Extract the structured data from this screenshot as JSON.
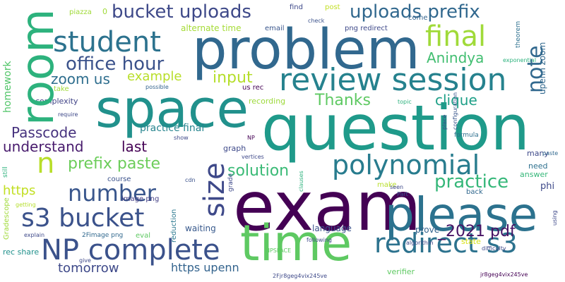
{
  "words": [
    {
      "text": "question",
      "color": "#1f9a8a"
    },
    {
      "text": "exam",
      "color": "#440154"
    },
    {
      "text": "problem",
      "color": "#31688e"
    },
    {
      "text": "space",
      "color": "#21918c"
    },
    {
      "text": "time",
      "color": "#5ec962"
    },
    {
      "text": "please",
      "color": "#2c728e"
    },
    {
      "text": "room",
      "color": "#2db27d"
    },
    {
      "text": "review session",
      "color": "#26828e"
    },
    {
      "text": "NP complete",
      "color": "#3b528b"
    },
    {
      "text": "redirect s3",
      "color": "#2c728e"
    },
    {
      "text": "s3 bucket",
      "color": "#3b528b"
    },
    {
      "text": "student",
      "color": "#2c728e"
    },
    {
      "text": "polynomial",
      "color": "#287c8e"
    },
    {
      "text": "final",
      "color": "#a0da39"
    },
    {
      "text": "size",
      "color": "#3e4989"
    },
    {
      "text": "number",
      "color": "#39568c"
    },
    {
      "text": "bucket uploads",
      "color": "#3e4989"
    },
    {
      "text": "uploads prefix",
      "color": "#31688e"
    },
    {
      "text": "office hour",
      "color": "#3b528b"
    },
    {
      "text": "practice",
      "color": "#35b779"
    },
    {
      "text": "n",
      "color": "#b8de29"
    },
    {
      "text": "review",
      "color": "#26828e"
    },
    {
      "text": "note",
      "color": "#31688e"
    },
    {
      "text": "input",
      "color": "#b5de2b"
    },
    {
      "text": "prefix paste",
      "color": "#6ccd5a"
    },
    {
      "text": "solution",
      "color": "#3aba76"
    },
    {
      "text": "Thanks",
      "color": "#5ec962"
    },
    {
      "text": "Passcode",
      "color": "#46327e"
    },
    {
      "text": "_2021 pdf",
      "color": "#471365"
    },
    {
      "text": "zoom us",
      "color": "#2e6e8e"
    },
    {
      "text": "clique",
      "color": "#1fa088"
    },
    {
      "text": "Anindya",
      "color": "#42be71"
    },
    {
      "text": "understand",
      "color": "#481b6d"
    },
    {
      "text": "last",
      "color": "#440154"
    },
    {
      "text": "tomorrow",
      "color": "#3e4989"
    },
    {
      "text": "https",
      "color": "#c2df23"
    },
    {
      "text": "example",
      "color": "#b8de29"
    },
    {
      "text": "practice final",
      "color": "#25848e"
    },
    {
      "text": "https upenn",
      "color": "#33638d"
    },
    {
      "text": "homework",
      "color": "#52c569"
    },
    {
      "text": "complexity",
      "color": "#414487"
    },
    {
      "text": "alternate time",
      "color": "#a5db36"
    },
    {
      "text": "waiting",
      "color": "#38598c"
    },
    {
      "text": "language",
      "color": "#3b528b"
    },
    {
      "text": "prove",
      "color": "#33638d"
    },
    {
      "text": "graph",
      "color": "#3e4989"
    },
    {
      "text": "recording",
      "color": "#9dd93b"
    },
    {
      "text": "verifier",
      "color": "#5ec962"
    },
    {
      "text": "state",
      "color": "#d8e219"
    },
    {
      "text": "us rec",
      "color": "#440154"
    },
    {
      "text": "email",
      "color": "#39568c"
    },
    {
      "text": "png redirect",
      "color": "#3e4989"
    },
    {
      "text": "upenn zoom",
      "color": "#31688e"
    },
    {
      "text": "phi",
      "color": "#3e4989"
    },
    {
      "text": "need",
      "color": "#2d708e"
    },
    {
      "text": "answer",
      "color": "#35b779"
    },
    {
      "text": "rec share",
      "color": "#21918c"
    },
    {
      "text": "image png",
      "color": "#433e85"
    },
    {
      "text": "2Fimage png",
      "color": "#31688e"
    },
    {
      "text": "eval",
      "color": "#5ec962"
    },
    {
      "text": "grade",
      "color": "#3e4989"
    },
    {
      "text": "reduction",
      "color": "#2a788e"
    },
    {
      "text": "Gradescope",
      "color": "#a0da39"
    },
    {
      "text": "course",
      "color": "#3b528b"
    },
    {
      "text": "formula",
      "color": "#2d708e"
    },
    {
      "text": "make",
      "color": "#b8de29"
    },
    {
      "text": "many",
      "color": "#3e4989"
    },
    {
      "text": "back",
      "color": "#31688e"
    },
    {
      "text": "paste",
      "color": "#31688e"
    },
    {
      "text": "take",
      "color": "#a0da39"
    },
    {
      "text": "piazza",
      "color": "#a0da39"
    },
    {
      "text": "0",
      "color": "#a0da39"
    },
    {
      "text": "find",
      "color": "#3e4989"
    },
    {
      "text": "post",
      "color": "#c2df23"
    },
    {
      "text": "check",
      "color": "#3b528b"
    },
    {
      "text": "come",
      "color": "#33638d"
    },
    {
      "text": "theorem",
      "color": "#2d708e"
    },
    {
      "text": "exponential",
      "color": "#2db27d"
    },
    {
      "text": "possible",
      "color": "#33638d"
    },
    {
      "text": "require",
      "color": "#3e4989"
    },
    {
      "text": "topic",
      "color": "#2db27d"
    },
    {
      "text": "place",
      "color": "#3e4989"
    },
    {
      "text": "configuration",
      "color": "#39568c"
    },
    {
      "text": "NP",
      "color": "#440154"
    },
    {
      "text": "show",
      "color": "#3e4989"
    },
    {
      "text": "vertices",
      "color": "#3e4989"
    },
    {
      "text": "still",
      "color": "#2db27d"
    },
    {
      "text": "cdn",
      "color": "#3b528b"
    },
    {
      "text": "clauses",
      "color": "#2db27d"
    },
    {
      "text": "seen",
      "color": "#3e4989"
    },
    {
      "text": "Part",
      "color": "#3b528b"
    },
    {
      "text": "using",
      "color": "#3e4989"
    },
    {
      "text": "getting",
      "color": "#b5de2b"
    },
    {
      "text": "explain",
      "color": "#3e4989"
    },
    {
      "text": "give",
      "color": "#3e4989"
    },
    {
      "text": "following",
      "color": "#3e4989"
    },
    {
      "text": "NPSPACE",
      "color": "#5ec962"
    },
    {
      "text": "algorithm",
      "color": "#3e4989"
    },
    {
      "text": "difficulty",
      "color": "#3e4989"
    },
    {
      "text": "2Fjr8geg4vix245ve",
      "color": "#3e4989"
    },
    {
      "text": "jr8geg4vix245ve",
      "color": "#440154"
    }
  ]
}
